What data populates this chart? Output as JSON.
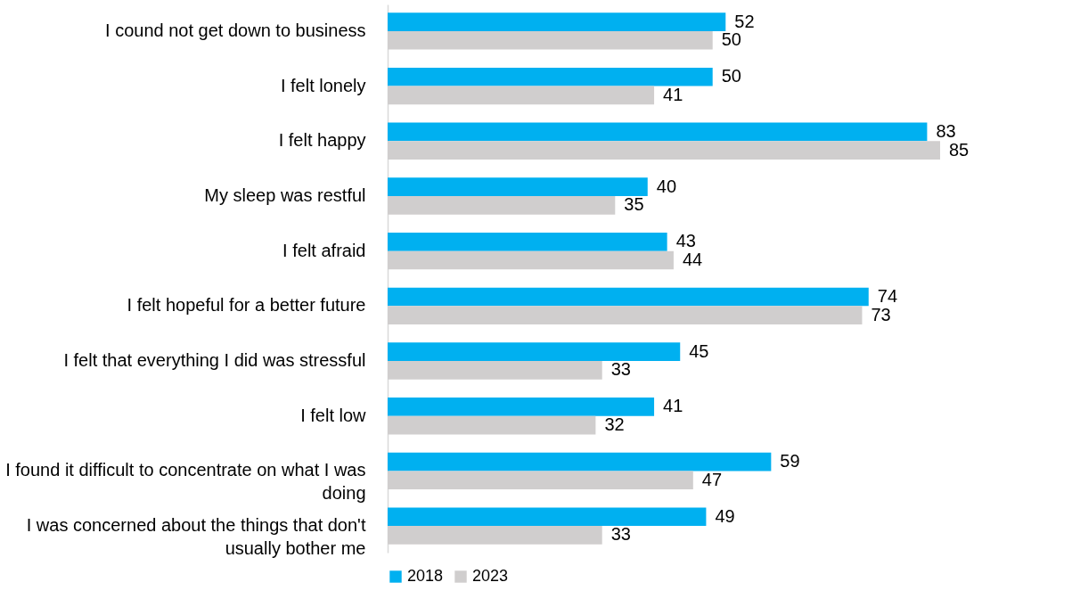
{
  "chart_data": {
    "type": "bar",
    "orientation": "horizontal",
    "categories": [
      "I cound not get down to business",
      "I felt lonely",
      "I felt happy",
      "My sleep was restful",
      "I felt afraid",
      "I felt hopeful for a better future",
      "I felt that everything I did was stressful",
      "I felt low",
      "I found it difficult to concentrate on what I was doing",
      "I was concerned about the things that don't usually bother me"
    ],
    "series": [
      {
        "name": "2018",
        "color": "#00b0f0",
        "values": [
          52,
          50,
          83,
          40,
          43,
          74,
          45,
          41,
          59,
          49
        ]
      },
      {
        "name": "2023",
        "color": "#d0cece",
        "values": [
          50,
          41,
          85,
          35,
          44,
          73,
          33,
          32,
          47,
          33
        ]
      }
    ],
    "data_labels": true,
    "legend": "bottom",
    "grid": false,
    "tick_labels": "y"
  }
}
